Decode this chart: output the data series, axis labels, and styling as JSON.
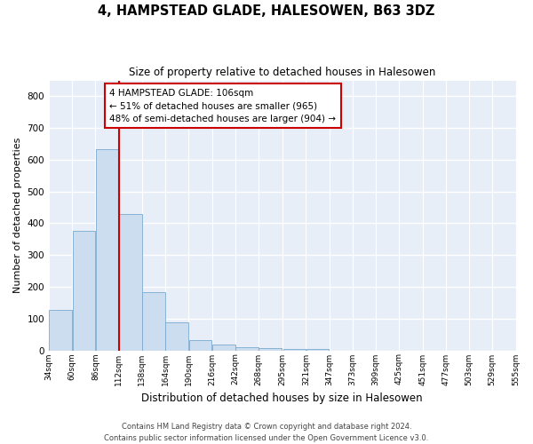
{
  "title": "4, HAMPSTEAD GLADE, HALESOWEN, B63 3DZ",
  "subtitle": "Size of property relative to detached houses in Halesowen",
  "xlabel": "Distribution of detached houses by size in Halesowen",
  "ylabel": "Number of detached properties",
  "bar_color": "#ccddf0",
  "bar_edge_color": "#7aaad0",
  "fig_bg_color": "#ffffff",
  "axes_bg_color": "#e8eef8",
  "grid_color": "#ffffff",
  "annotation_box_text": "4 HAMPSTEAD GLADE: 106sqm\n← 51% of detached houses are smaller (965)\n48% of semi-detached houses are larger (904) →",
  "bins": [
    34,
    60,
    86,
    112,
    138,
    164,
    190,
    216,
    242,
    268,
    295,
    321,
    347,
    373,
    399,
    425,
    451,
    477,
    503,
    529,
    555
  ],
  "bar_heights": [
    128,
    375,
    633,
    430,
    183,
    88,
    33,
    17,
    10,
    7,
    5,
    5,
    0,
    0,
    0,
    0,
    0,
    0,
    0,
    0
  ],
  "ylim": [
    0,
    850
  ],
  "yticks": [
    0,
    100,
    200,
    300,
    400,
    500,
    600,
    700,
    800
  ],
  "footer_line1": "Contains HM Land Registry data © Crown copyright and database right 2024.",
  "footer_line2": "Contains public sector information licensed under the Open Government Licence v3.0.",
  "annotation_box_color": "#cc0000",
  "vline_color": "#cc0000",
  "vline_x": 112
}
